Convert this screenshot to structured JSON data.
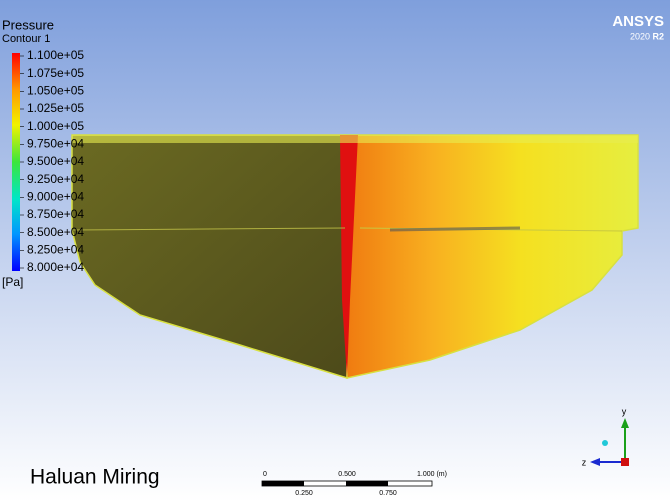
{
  "legend": {
    "title": "Pressure",
    "subtitle": "Contour 1",
    "labels": [
      "1.100e+05",
      "1.075e+05",
      "1.050e+05",
      "1.025e+05",
      "1.000e+05",
      "9.750e+04",
      "9.500e+04",
      "9.250e+04",
      "9.000e+04",
      "8.750e+04",
      "8.500e+04",
      "8.250e+04",
      "8.000e+04"
    ],
    "unit": "[Pa]"
  },
  "logo": {
    "name": "ANSYS",
    "version": "2020",
    "release": "R2"
  },
  "caption": "Haluan Miring",
  "scale_bar": {
    "top_labels": [
      "0",
      "0.500",
      "1.000 (m)"
    ],
    "bottom_labels": [
      "0.250",
      "0.750"
    ]
  },
  "triad": {
    "y": "y",
    "z": "z"
  }
}
